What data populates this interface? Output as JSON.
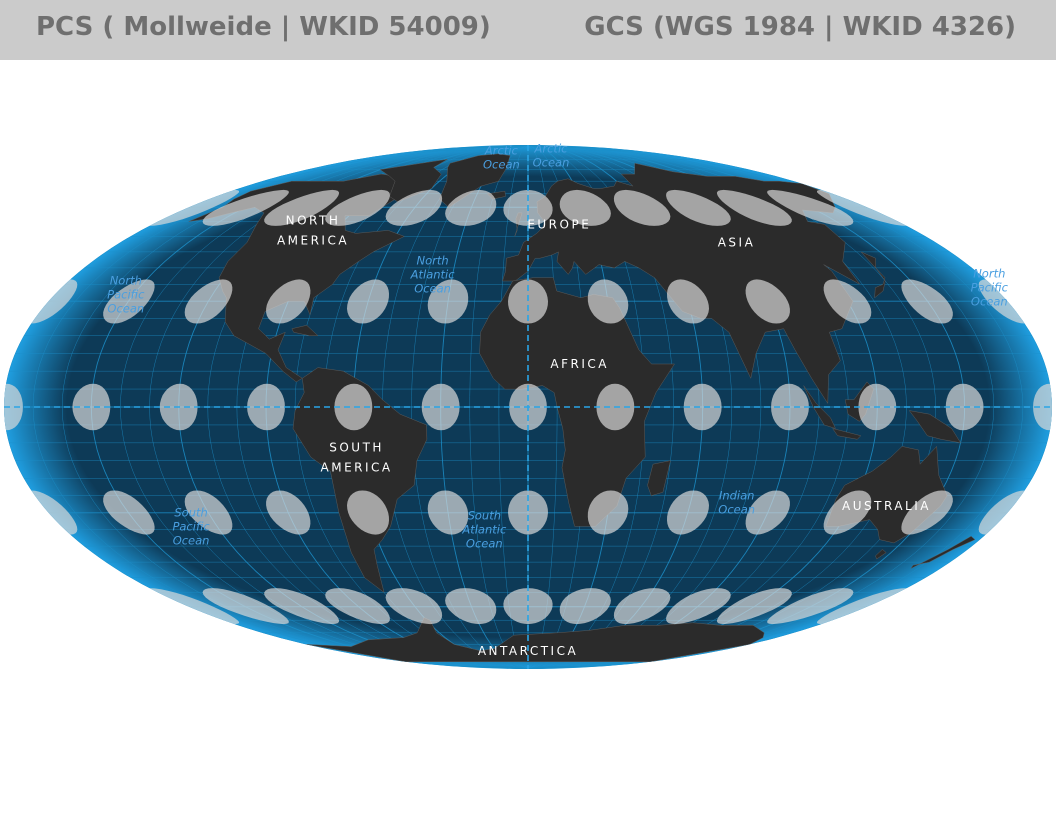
{
  "header": {
    "pcs_title": "PCS ( Mollweide | WKID 54009)",
    "gcs_title": "GCS (WGS 1984 | WKID 4326)"
  },
  "colors": {
    "header_bg": "#cbcbcb",
    "header_text": "#6f6f6f",
    "ocean": "#0d3a57",
    "graticule": "#1c8fc9",
    "land": "#2b2b2b",
    "tissot": "#d9d9d9",
    "ocean_label": "#4a9fe0",
    "continent_label": "#ffffff"
  },
  "map": {
    "projection": "Mollweide",
    "continent_labels": [
      {
        "lines": [
          "NORTH",
          "AMERICA"
        ],
        "lon": -100,
        "lat": 52
      },
      {
        "lines": [
          "EUROPE"
        ],
        "lon": 15,
        "lat": 54
      },
      {
        "lines": [
          "ASIA"
        ],
        "lon": 92,
        "lat": 48
      },
      {
        "lines": [
          "AFRICA"
        ],
        "lon": 18,
        "lat": 12
      },
      {
        "lines": [
          "SOUTH",
          "AMERICA"
        ],
        "lon": -60,
        "lat": -14
      },
      {
        "lines": [
          "AUSTRALIA"
        ],
        "lon": 133,
        "lat": -28
      },
      {
        "lines": [
          "ANTARCTICA"
        ],
        "lon": 0,
        "lat": -78
      }
    ],
    "ocean_labels": [
      {
        "lines": [
          "Arctic",
          "Ocean"
        ],
        "lon": -30,
        "lat": 81
      },
      {
        "lines": [
          "Arctic",
          "Ocean"
        ],
        "lon": 28,
        "lat": 82
      },
      {
        "lines": [
          "North",
          "Pacific",
          "Ocean"
        ],
        "lon": -153,
        "lat": 32
      },
      {
        "lines": [
          "North",
          "Atlantic",
          "Ocean"
        ],
        "lon": -38,
        "lat": 38
      },
      {
        "lines": [
          "North",
          "Pacific",
          "Ocean"
        ],
        "lon": 178,
        "lat": 34
      },
      {
        "lines": [
          "Indian",
          "Ocean"
        ],
        "lon": 77,
        "lat": -27
      },
      {
        "lines": [
          "South",
          "Pacific",
          "Ocean"
        ],
        "lon": -130,
        "lat": -34
      },
      {
        "lines": [
          "South",
          "Atlantic",
          "Ocean"
        ],
        "lon": -17,
        "lat": -35
      }
    ]
  }
}
